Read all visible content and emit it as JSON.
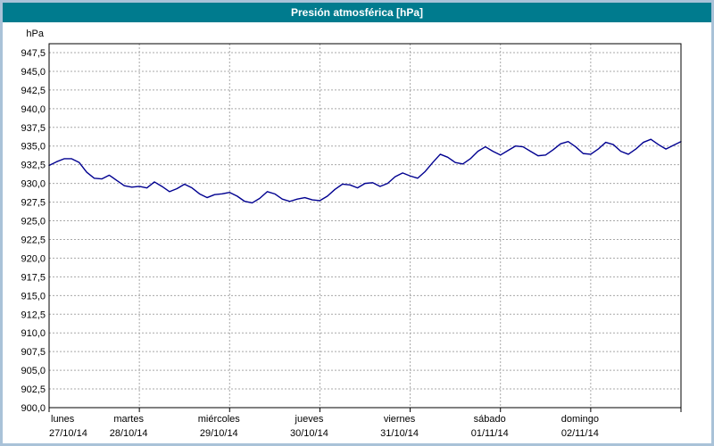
{
  "window": {
    "border_color": "#a9c2d8"
  },
  "chart_data": {
    "type": "line",
    "title": "Presión atmosférica [hPa]",
    "ylabel": "hPa",
    "ylim": [
      900.0,
      947.5
    ],
    "ytick_step": 2.5,
    "y_tick_labels": [
      "947,5",
      "945,0",
      "942,5",
      "940,0",
      "937,5",
      "935,0",
      "932,5",
      "930,0",
      "927,5",
      "925,0",
      "922,5",
      "920,0",
      "917,5",
      "915,0",
      "912,5",
      "910,0",
      "907,5",
      "905,0",
      "902,5",
      "900,0"
    ],
    "days": [
      {
        "label": "lunes",
        "date": "27/10/14"
      },
      {
        "label": "martes",
        "date": "28/10/14"
      },
      {
        "label": "miércoles",
        "date": "29/10/14"
      },
      {
        "label": "jueves",
        "date": "30/10/14"
      },
      {
        "label": "viernes",
        "date": "31/10/14"
      },
      {
        "label": "sábado",
        "date": "01/11/14"
      },
      {
        "label": "domingo",
        "date": "02/11/14"
      }
    ],
    "samples_per_day": 12,
    "grid": true,
    "legend_position": "none",
    "series": [
      {
        "name": "Presión atmosférica",
        "values": [
          932.4,
          932.9,
          933.3,
          933.3,
          932.8,
          931.5,
          930.7,
          930.6,
          931.1,
          930.4,
          929.7,
          929.5,
          929.6,
          929.4,
          930.2,
          929.6,
          928.9,
          929.3,
          929.9,
          929.4,
          928.6,
          928.1,
          928.5,
          928.6,
          928.8,
          928.3,
          927.6,
          927.4,
          928.0,
          928.9,
          928.6,
          927.9,
          927.6,
          927.9,
          928.1,
          927.8,
          927.7,
          928.3,
          929.2,
          929.9,
          929.8,
          929.4,
          930.0,
          930.1,
          929.6,
          930.0,
          930.9,
          931.4,
          931.0,
          930.7,
          931.6,
          932.8,
          933.9,
          933.5,
          932.8,
          932.6,
          933.3,
          934.3,
          934.9,
          934.3,
          933.8,
          934.4,
          935.0,
          934.9,
          934.3,
          933.7,
          933.8,
          934.5,
          935.3,
          935.6,
          934.9,
          934.0,
          933.9,
          934.6,
          935.5,
          935.2,
          934.3,
          933.9,
          934.6,
          935.5,
          935.9,
          935.2,
          934.6,
          935.1,
          935.6
        ]
      }
    ],
    "colors": {
      "title_bar": "#007b8e",
      "title_text": "#ffffff",
      "line": "#000090",
      "grid": "#a8a8a8",
      "frame": "#000000",
      "background": "#ffffff"
    }
  }
}
